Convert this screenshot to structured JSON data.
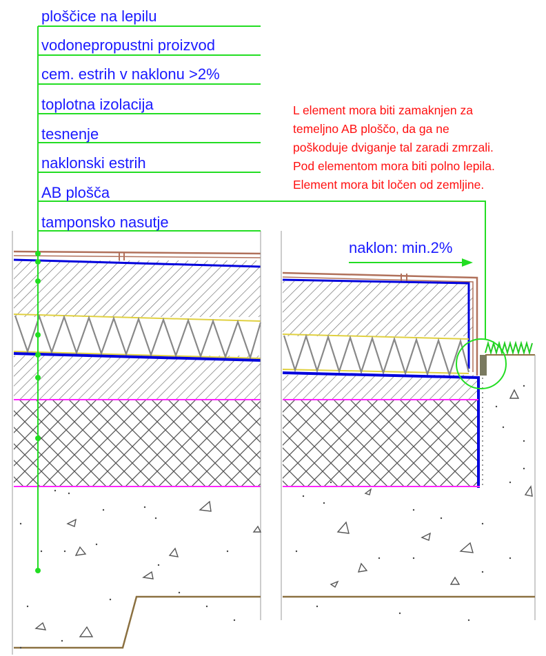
{
  "layer_labels": [
    "ploščice na lepilu",
    "vodonepropustni proizvod",
    "cem. estrih v naklonu >2%",
    "toplotna izolacija",
    "tesnenje",
    "naklonski estrih",
    "AB plošča",
    "tamponsko nasutje"
  ],
  "note_lines": [
    "L element mora biti zamaknjen za",
    "temeljno AB ploščo, da ga ne",
    "poškoduje dviganje tal zaradi zmrzali.",
    "Pod elementom mora biti polno lepila.",
    "Element mora bit ločen od zemljine."
  ],
  "slope_label": "naklon: min.2%",
  "colors": {
    "leader": "#22dd22",
    "label_text": "#1a1aff",
    "note_text": "#ff1010",
    "tile": "#b0705a",
    "waterproofing": "#0000dd",
    "insulation_border": "#e0d040",
    "tamponsko_border": "#ff22ff",
    "hatch": "#707070",
    "ground_line": "#8b7040"
  }
}
